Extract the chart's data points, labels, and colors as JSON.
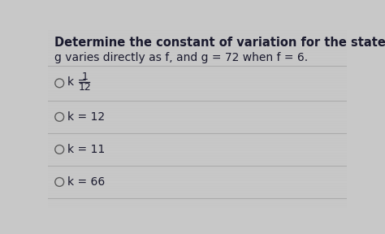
{
  "title": "Determine the constant of variation for the stated condition.",
  "subtitle": "g varies directly as f, and g = 72 when f = 6.",
  "options": [
    "k = 12",
    "k = 11",
    "k = 66"
  ],
  "bg_color": "#c8c8c8",
  "text_color": "#1a1a2e",
  "title_fontsize": 10.5,
  "body_fontsize": 10,
  "option_fontsize": 10,
  "divider_color": "#aaaaaa",
  "line_texture_color": "#bbbbbb"
}
